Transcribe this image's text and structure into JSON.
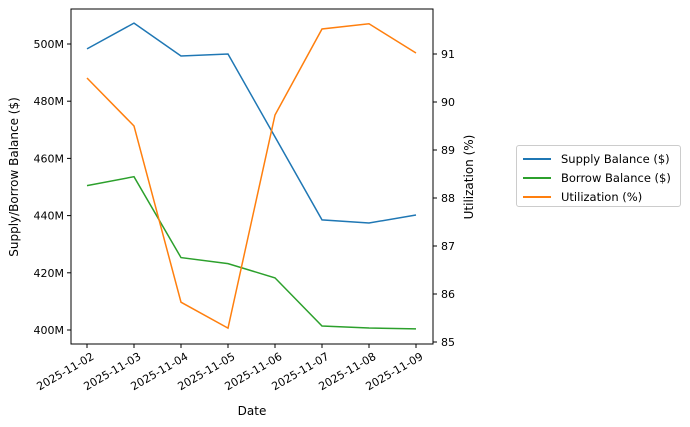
{
  "chart_data": {
    "type": "line",
    "title": "",
    "xlabel": "Date",
    "ylabel": "Supply/Borrow Balance ($)",
    "y2label": "Utilization (%)",
    "x": [
      "2025-11-02",
      "2025-11-03",
      "2025-11-04",
      "2025-11-05",
      "2025-11-06",
      "2025-11-07",
      "2025-11-08",
      "2025-11-09"
    ],
    "ylim": [
      395,
      512
    ],
    "y2lim": [
      84.95,
      91.9
    ],
    "yticks": [
      "400M",
      "420M",
      "440M",
      "460M",
      "480M",
      "500M"
    ],
    "y2ticks": [
      "85",
      "86",
      "87",
      "88",
      "89",
      "90",
      "91"
    ],
    "grid": false,
    "legend_position": "outside right",
    "series": [
      {
        "name": "Supply Balance ($)",
        "axis": "left",
        "color": "#1f77b4",
        "values": [
          498.3,
          507.3,
          495.8,
          496.5,
          467.5,
          438.5,
          437.4,
          440.2
        ]
      },
      {
        "name": "Borrow Balance ($)",
        "axis": "left",
        "color": "#2ca02c",
        "values": [
          450.5,
          453.6,
          425.3,
          423.2,
          418.2,
          401.4,
          400.7,
          400.4
        ]
      },
      {
        "name": "Utilization (%)",
        "axis": "right",
        "color": "#ff7f0e",
        "values": [
          90.5,
          89.5,
          85.83,
          85.29,
          89.73,
          91.52,
          91.63,
          91.02
        ]
      }
    ]
  },
  "legend": {
    "items": [
      {
        "label": "Supply Balance ($)",
        "color": "#1f77b4"
      },
      {
        "label": "Borrow Balance ($)",
        "color": "#2ca02c"
      },
      {
        "label": "Utilization (%)",
        "color": "#ff7f0e"
      }
    ]
  }
}
